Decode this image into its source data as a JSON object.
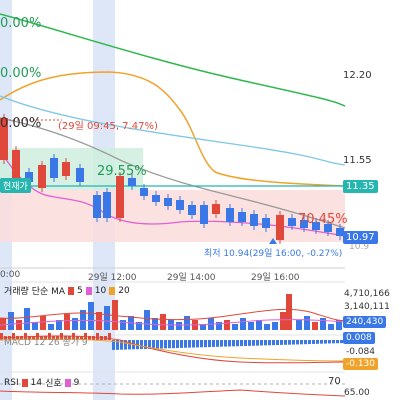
{
  "overlays": {
    "pct_top": "0.00%",
    "pct_mid": "0.00%",
    "pct_third": "0.00%",
    "high_note": "(29일 09:45, 7.47%)",
    "now_label": "현재가",
    "low_note": "최저 10.94(29일 16:00, -0.27%)",
    "green_pct": "29.55%",
    "red_pct": "70.45%"
  },
  "price_axis": {
    "ticks": [
      "12.20",
      "11.55"
    ],
    "current_tag": "11.35",
    "tag_1097": "10.97",
    "faint_low": "10.9"
  },
  "time_axis": {
    "ticks": [
      "0:00",
      "29일 12:00",
      "29일 14:00",
      "29일 16:00"
    ]
  },
  "volume": {
    "legend_title": "거래량 단순 MA",
    "legend_values": [
      "5",
      "10",
      "20"
    ],
    "axis": [
      "4,710,166",
      "3,140,111"
    ],
    "value_tag": "240,430"
  },
  "macd": {
    "legend_text": "MACD 12 26 종가 9",
    "axis_008": "0.008",
    "axis_084": "-0.084",
    "value_tag": "-0.130"
  },
  "rsi": {
    "legend_title": "RSI",
    "legend_period": "14",
    "legend_signal_label": "신호",
    "legend_signal": "9",
    "axis_top": "70",
    "axis_65": "65.00"
  },
  "colors": {
    "up": "#e0483c",
    "down": "#3b78e7",
    "green": "#1f9d55",
    "teal": "#27b5b0"
  }
}
